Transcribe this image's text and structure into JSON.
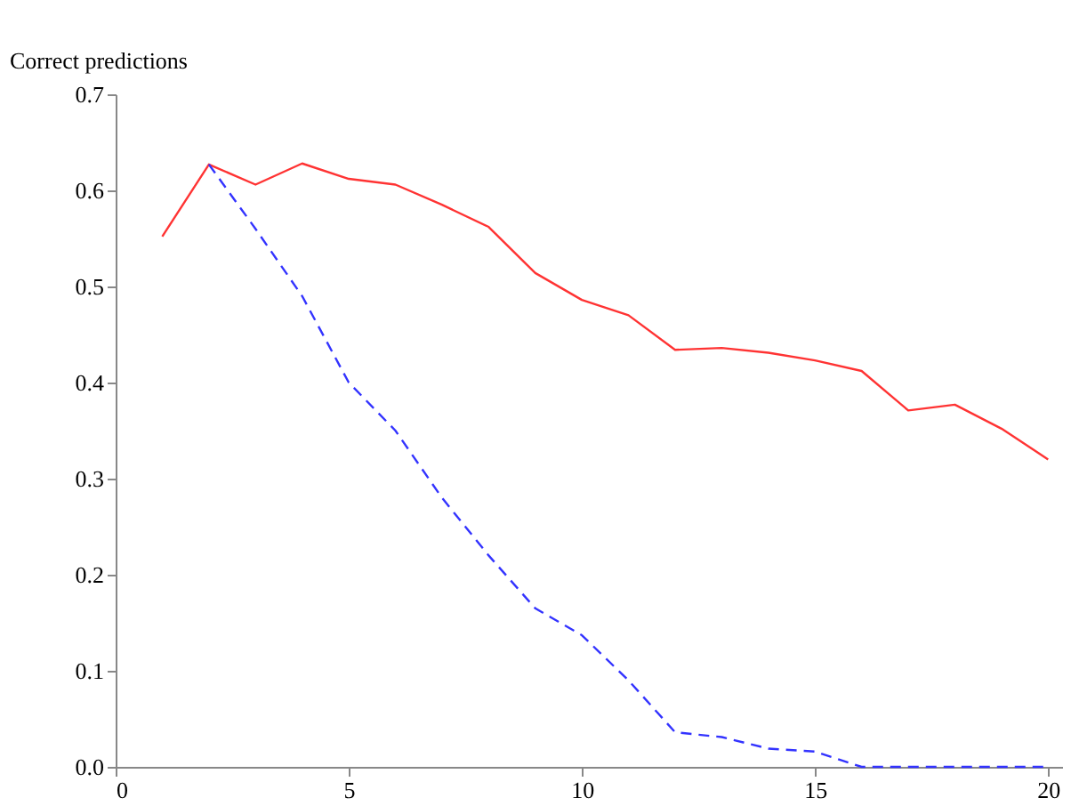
{
  "chart_data": {
    "type": "line",
    "ylabel": "Correct predictions",
    "xlim": [
      0,
      20.3
    ],
    "ylim": [
      0,
      0.7
    ],
    "xticks": [
      0,
      5,
      10,
      15,
      20
    ],
    "yticks": [
      {
        "value": 0,
        "label": "0.0"
      },
      0.1,
      0.2,
      0.3,
      0.4,
      0.5,
      0.6,
      0.7
    ],
    "grid": false,
    "marker": "none",
    "series": [
      {
        "color": "#ff3333",
        "line_style": "solid",
        "x": [
          1,
          2,
          3,
          4,
          5,
          6,
          7,
          8,
          9,
          10,
          11,
          12,
          13,
          14,
          15,
          16,
          17,
          18,
          19,
          20
        ],
        "values": [
          0.552,
          0.627,
          0.606,
          0.628,
          0.612,
          0.606,
          0.585,
          0.562,
          0.514,
          0.486,
          0.47,
          0.434,
          0.436,
          0.431,
          0.423,
          0.412,
          0.371,
          0.377,
          0.352,
          0.32
        ]
      },
      {
        "color": "#3333ff",
        "line_style": "dashed",
        "x": [
          2,
          3,
          4,
          5,
          6,
          7,
          8,
          9,
          10,
          11,
          12,
          13,
          14,
          15,
          16,
          17,
          18,
          19,
          20
        ],
        "values": [
          0.627,
          0.56,
          0.49,
          0.4,
          0.35,
          0.28,
          0.22,
          0.165,
          0.137,
          0.09,
          0.036,
          0.031,
          0.019,
          0.016,
          0.0,
          0.0,
          0.0,
          0.0,
          0.0
        ]
      }
    ]
  }
}
